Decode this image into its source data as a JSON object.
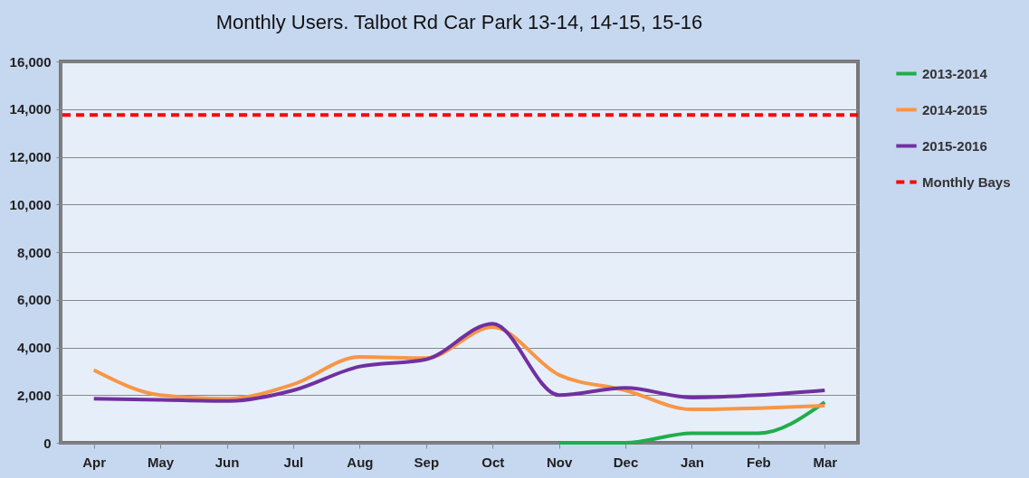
{
  "chart_data": {
    "type": "line",
    "title": "Monthly Users. Talbot Rd Car Park 13-14, 14-15, 15-16",
    "categories": [
      "Apr",
      "May",
      "Jun",
      "Jul",
      "Aug",
      "Sep",
      "Oct",
      "Nov",
      "Dec",
      "Jan",
      "Feb",
      "Mar"
    ],
    "series": [
      {
        "name": "2013-2014",
        "color": "#1fae4b",
        "values": [
          null,
          null,
          null,
          null,
          null,
          null,
          null,
          0,
          0,
          400,
          400,
          1700
        ]
      },
      {
        "name": "2014-2015",
        "color": "#f79646",
        "values": [
          3050,
          2000,
          1850,
          2450,
          3600,
          3550,
          4850,
          2850,
          2200,
          1400,
          1450,
          1550
        ]
      },
      {
        "name": "2015-2016",
        "color": "#7030a0",
        "values": [
          1850,
          1800,
          1750,
          2200,
          3200,
          3500,
          5000,
          2000,
          2300,
          1900,
          2000,
          2200
        ]
      }
    ],
    "ref_lines": [
      {
        "axis": "y",
        "value": 13750,
        "label": "Monthly Bays",
        "color": "#ff0000",
        "line_style": "dashed"
      }
    ],
    "ylim": [
      0,
      16000
    ],
    "yticks": [
      0,
      {
        "value": 2000,
        "label": "2,000"
      },
      {
        "value": 4000,
        "label": "4,000"
      },
      {
        "value": 6000,
        "label": "6,000"
      },
      {
        "value": 8000,
        "label": "8,000"
      },
      {
        "value": 10000,
        "label": "10,000"
      },
      {
        "value": 12000,
        "label": "12,000"
      },
      {
        "value": 14000,
        "label": "14,000"
      },
      {
        "value": 16000,
        "label": "16,000"
      }
    ],
    "grid": "y",
    "legend": "right",
    "line_style": "solid",
    "marker": "none"
  }
}
